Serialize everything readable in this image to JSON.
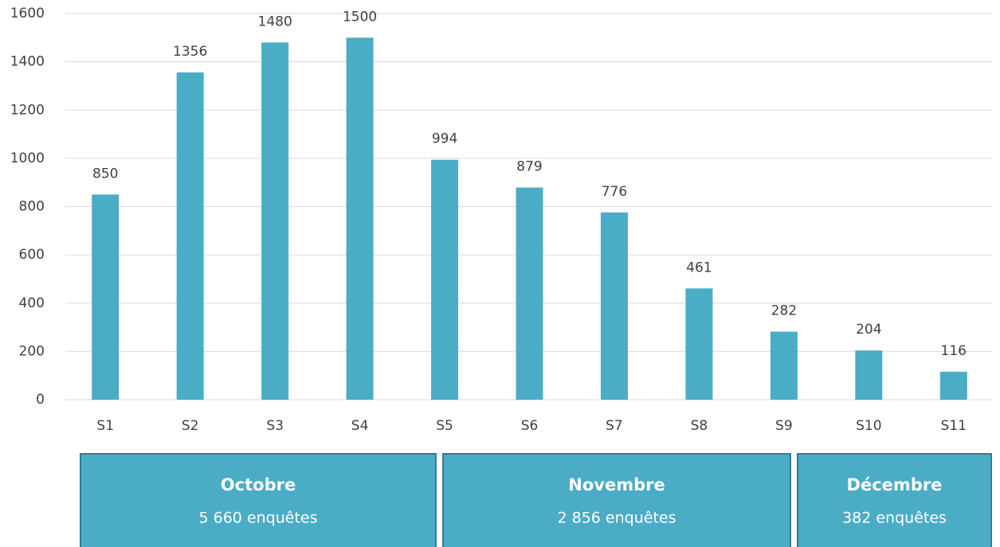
{
  "chart_data": {
    "type": "bar",
    "categories": [
      "S1",
      "S2",
      "S3",
      "S4",
      "S5",
      "S6",
      "S7",
      "S8",
      "S9",
      "S10",
      "S11"
    ],
    "values": [
      850,
      1356,
      1480,
      1500,
      994,
      879,
      776,
      461,
      282,
      204,
      116
    ],
    "color": "#4bacc6",
    "ylim": [
      0,
      1600
    ],
    "yticks": [
      0,
      200,
      400,
      600,
      800,
      1000,
      1200,
      1400,
      1600
    ],
    "grid": true,
    "groups": [
      {
        "name": "Octobre",
        "label": "5 660 enquêtes"
      },
      {
        "name": "Novembre",
        "label": "2 856 enquêtes"
      },
      {
        "name": "Décembre",
        "label": "382 enquêtes"
      }
    ]
  }
}
